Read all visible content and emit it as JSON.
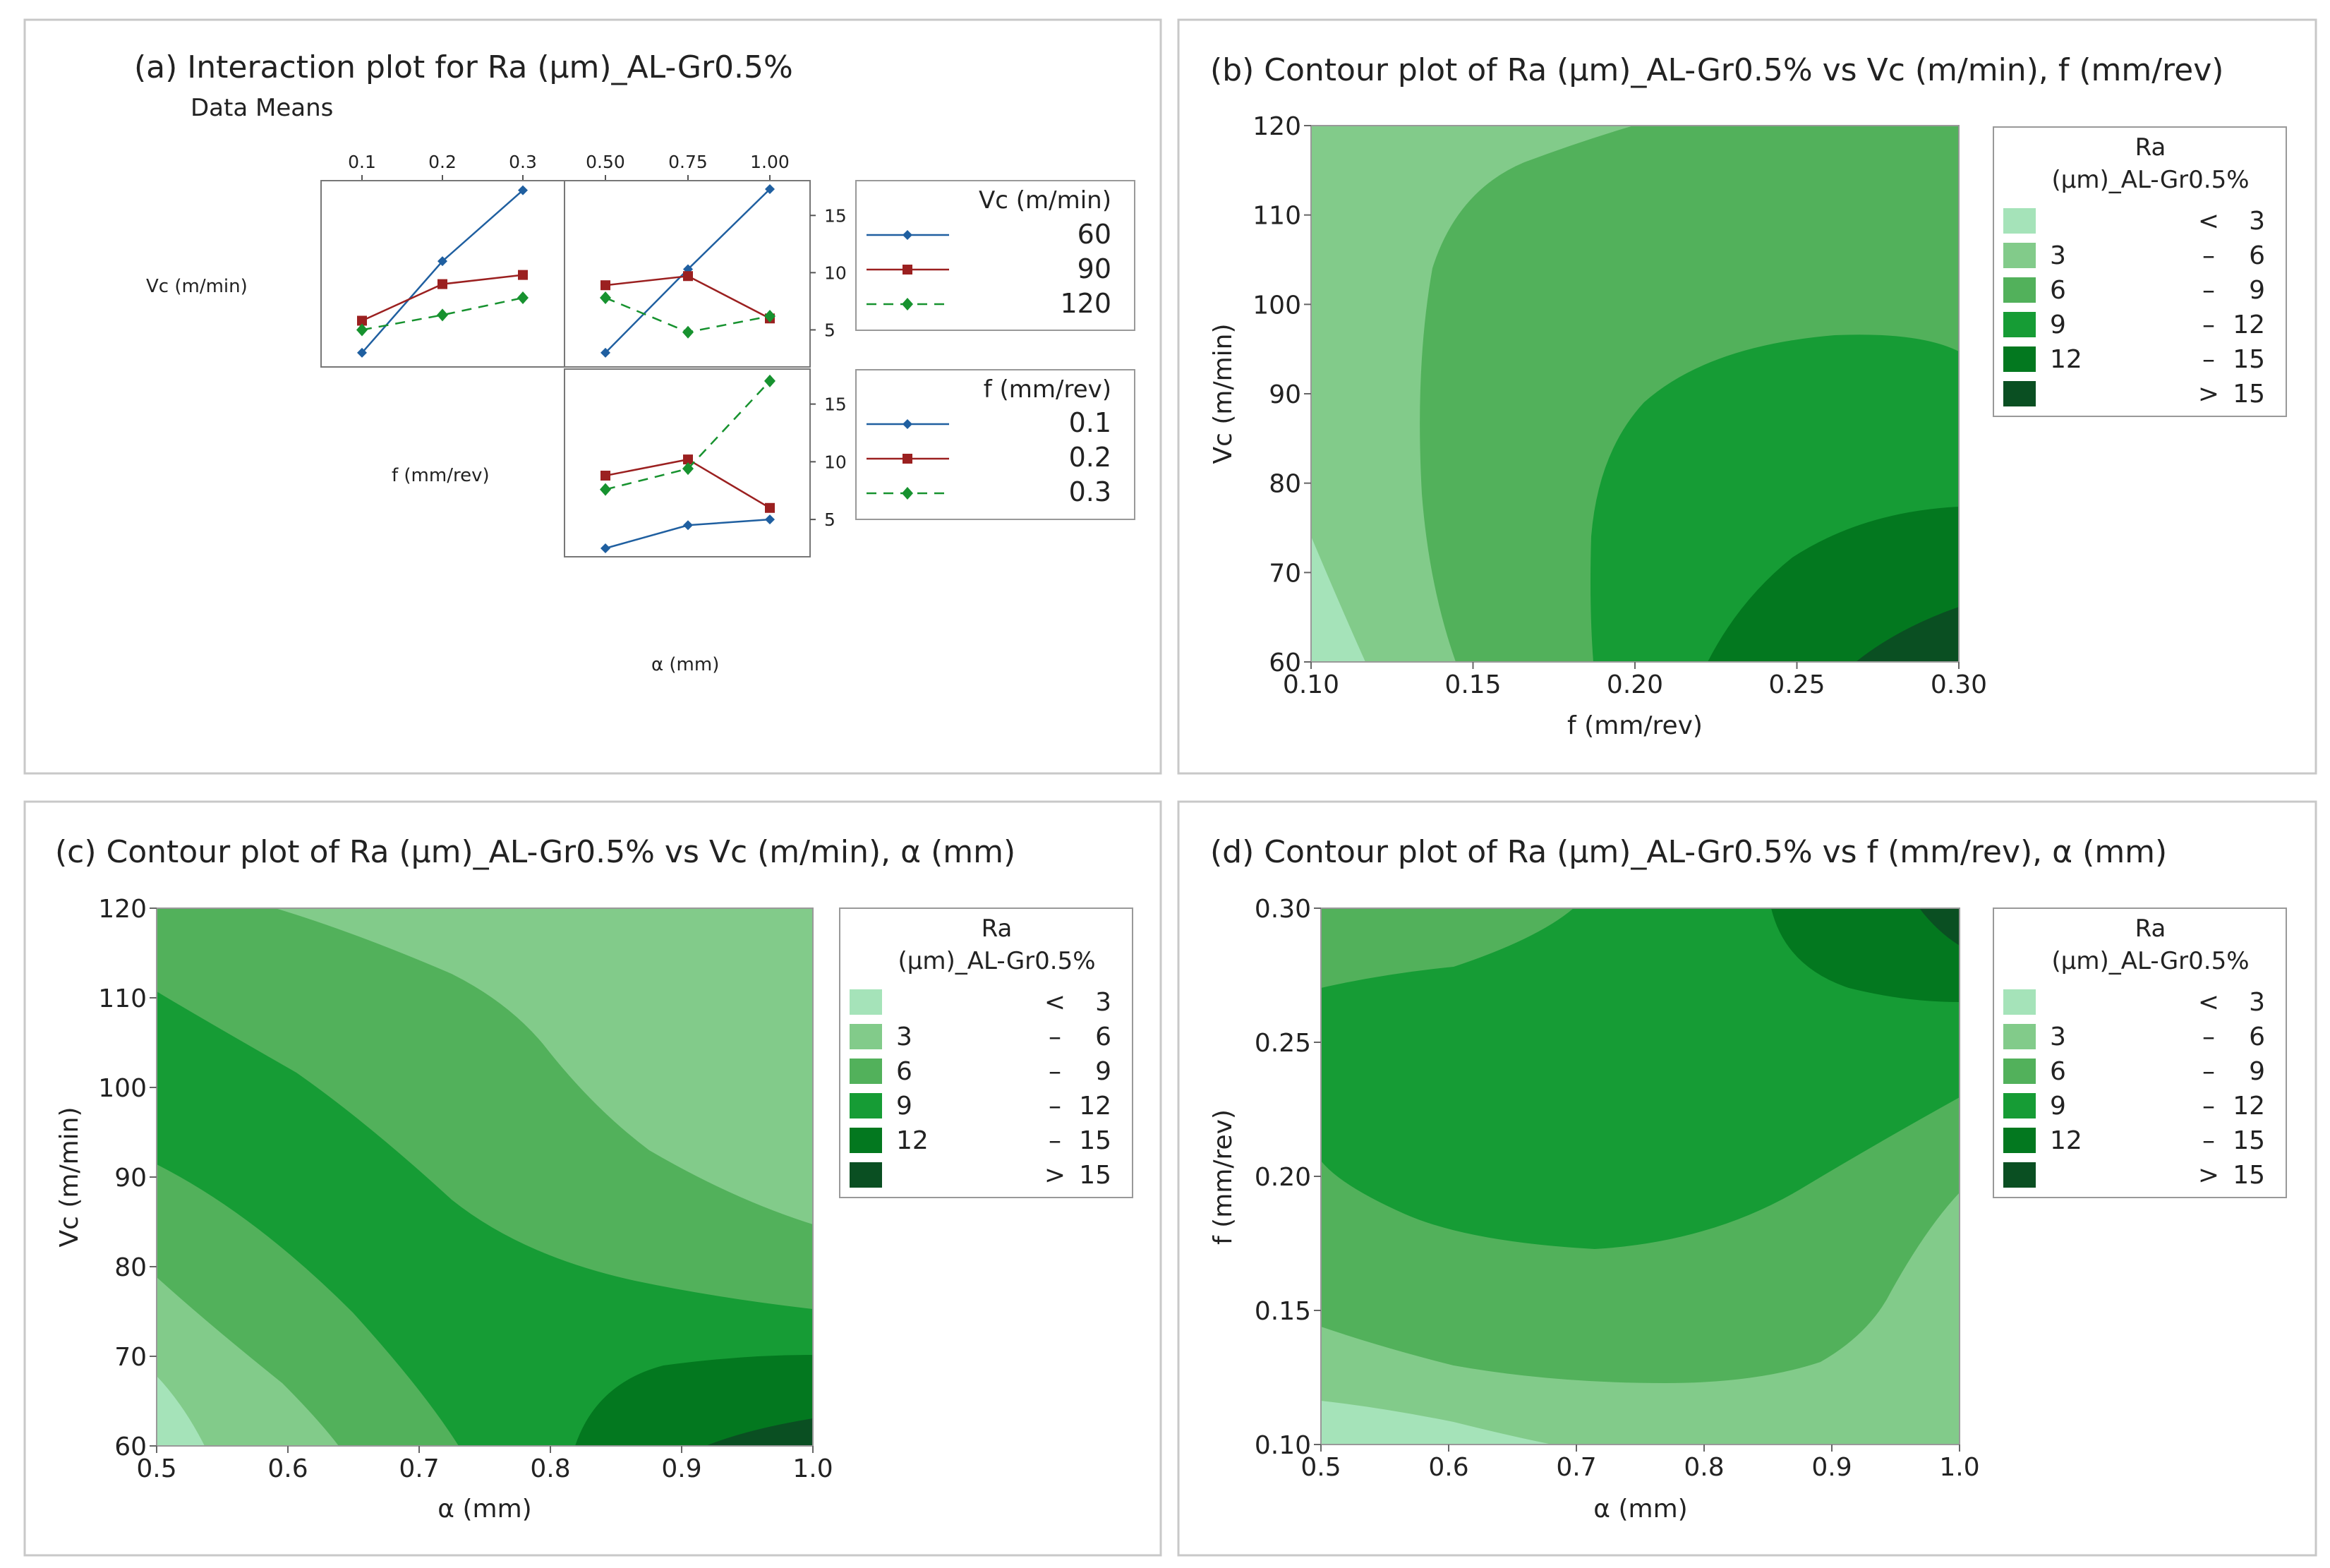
{
  "colors": {
    "band_1": "#a5e3b9",
    "band_2": "#82cb8a",
    "band_3": "#52b15b",
    "band_4": "#169c35",
    "band_5": "#03781f",
    "band_6": "#0a4f22",
    "series_blue": "#1f5fa0",
    "series_red": "#9b2020",
    "series_green": "#17922f"
  },
  "chart_data": [
    {
      "type": "line",
      "id": "a",
      "title": "(a) Interaction plot for Ra (μm)_AL-Gr0.5%",
      "subtitle": "Data Means",
      "factor_labels": [
        "Vc (m/min)",
        "f (mm/rev)",
        "α (mm)"
      ],
      "f_ticks": [
        "0.1",
        "0.2",
        "0.3"
      ],
      "alpha_ticks": [
        "0.50",
        "0.75",
        "1.00"
      ],
      "y_ticks": [
        5,
        10,
        15
      ],
      "ylim": [
        2.5,
        17.3
      ],
      "legend_vc": {
        "title": "Vc (m/min)",
        "entries": [
          "60",
          "90",
          "120"
        ]
      },
      "legend_f": {
        "title": "f (mm/rev)",
        "entries": [
          "0.1",
          "0.2",
          "0.3"
        ]
      },
      "panels": [
        {
          "id": "vc_by_f",
          "x": [
            0.1,
            0.2,
            0.3
          ],
          "series": [
            {
              "legend": "Vc",
              "entry": 0,
              "values": [
                3.0,
                11.0,
                17.2
              ]
            },
            {
              "legend": "Vc",
              "entry": 1,
              "values": [
                5.8,
                9.0,
                9.8
              ]
            },
            {
              "legend": "Vc",
              "entry": 2,
              "values": [
                5.0,
                6.3,
                7.8
              ]
            }
          ]
        },
        {
          "id": "vc_by_alpha",
          "x": [
            0.5,
            0.75,
            1.0
          ],
          "series": [
            {
              "legend": "Vc",
              "entry": 0,
              "values": [
                3.0,
                10.3,
                17.3
              ]
            },
            {
              "legend": "Vc",
              "entry": 1,
              "values": [
                8.9,
                9.7,
                6.0
              ]
            },
            {
              "legend": "Vc",
              "entry": 2,
              "values": [
                7.8,
                4.8,
                6.2
              ]
            }
          ]
        },
        {
          "id": "f_by_alpha",
          "x": [
            0.5,
            0.75,
            1.0
          ],
          "series": [
            {
              "legend": "f",
              "entry": 0,
              "values": [
                2.5,
                4.5,
                5.0
              ]
            },
            {
              "legend": "f",
              "entry": 1,
              "values": [
                8.8,
                10.2,
                6.0
              ]
            },
            {
              "legend": "f",
              "entry": 2,
              "values": [
                7.6,
                9.4,
                17.0
              ]
            }
          ]
        }
      ]
    },
    {
      "type": "contour",
      "id": "b",
      "title": "(b) Contour plot of Ra (μm)_AL-Gr0.5% vs Vc (m/min), f (mm/rev)",
      "xlabel": "f (mm/rev)",
      "ylabel": "Vc (m/min)",
      "xlim": [
        0.1,
        0.3
      ],
      "ylim": [
        60,
        120
      ],
      "x_ticks": [
        "0.10",
        "0.15",
        "0.20",
        "0.25",
        "0.30"
      ],
      "y_ticks": [
        "60",
        "70",
        "80",
        "90",
        "100",
        "110",
        "120"
      ],
      "legend_title_1": "Ra",
      "legend_title_2": "(μm)_AL-Gr0.5%",
      "legend": [
        {
          "low": "",
          "op": "<",
          "high": "3"
        },
        {
          "low": "3",
          "op": "–",
          "high": "6"
        },
        {
          "low": "6",
          "op": "–",
          "high": "9"
        },
        {
          "low": "9",
          "op": "–",
          "high": "12"
        },
        {
          "low": "12",
          "op": "–",
          "high": "15"
        },
        {
          "low": "",
          "op": ">",
          "high": "15"
        }
      ]
    },
    {
      "type": "contour",
      "id": "c",
      "title": "(c) Contour plot of Ra (μm)_AL-Gr0.5% vs Vc (m/min), α (mm)",
      "xlabel": "α (mm)",
      "ylabel": "Vc (m/min)",
      "xlim": [
        0.5,
        1.0
      ],
      "ylim": [
        60,
        120
      ],
      "x_ticks": [
        "0.5",
        "0.6",
        "0.7",
        "0.8",
        "0.9",
        "1.0"
      ],
      "y_ticks": [
        "60",
        "70",
        "80",
        "90",
        "100",
        "110",
        "120"
      ],
      "legend_title_1": "Ra",
      "legend_title_2": "(μm)_AL-Gr0.5%",
      "legend": [
        {
          "low": "",
          "op": "<",
          "high": "3"
        },
        {
          "low": "3",
          "op": "–",
          "high": "6"
        },
        {
          "low": "6",
          "op": "–",
          "high": "9"
        },
        {
          "low": "9",
          "op": "–",
          "high": "12"
        },
        {
          "low": "12",
          "op": "–",
          "high": "15"
        },
        {
          "low": "",
          "op": ">",
          "high": "15"
        }
      ]
    },
    {
      "type": "contour",
      "id": "d",
      "title": "(d) Contour plot of Ra (μm)_AL-Gr0.5% vs f (mm/rev), α (mm)",
      "xlabel": "α (mm)",
      "ylabel": "f (mm/rev)",
      "xlim": [
        0.5,
        1.0
      ],
      "ylim": [
        0.1,
        0.3
      ],
      "x_ticks": [
        "0.5",
        "0.6",
        "0.7",
        "0.8",
        "0.9",
        "1.0"
      ],
      "y_ticks": [
        "0.10",
        "0.15",
        "0.20",
        "0.25",
        "0.30"
      ],
      "legend_title_1": "Ra",
      "legend_title_2": "(μm)_AL-Gr0.5%",
      "legend": [
        {
          "low": "",
          "op": "<",
          "high": "3"
        },
        {
          "low": "3",
          "op": "–",
          "high": "6"
        },
        {
          "low": "6",
          "op": "–",
          "high": "9"
        },
        {
          "low": "9",
          "op": "–",
          "high": "12"
        },
        {
          "low": "12",
          "op": "–",
          "high": "15"
        },
        {
          "low": "",
          "op": ">",
          "high": "15"
        }
      ]
    }
  ]
}
